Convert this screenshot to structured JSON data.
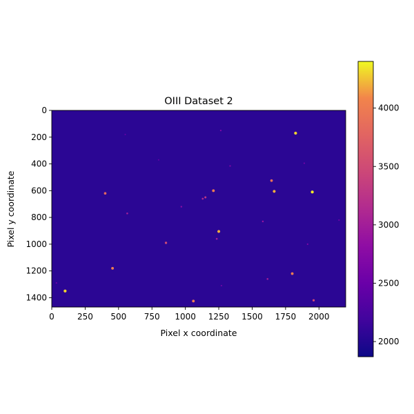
{
  "chart_data": {
    "type": "heatmap",
    "title": "OIII Dataset 2",
    "xlabel": "Pixel x coordinate",
    "ylabel": "Pixel y coordinate",
    "xlim": [
      0,
      2200
    ],
    "ylim": [
      1470,
      0
    ],
    "x_ticks": [
      0,
      250,
      500,
      750,
      1000,
      1250,
      1500,
      1750,
      2000
    ],
    "y_ticks": [
      0,
      200,
      400,
      600,
      800,
      1000,
      1200,
      1400
    ],
    "colormap": "plasma",
    "colorbar": {
      "min": 1870,
      "max": 4400,
      "ticks": [
        2000,
        2500,
        3000,
        3500,
        4000
      ]
    },
    "background_level": 2050,
    "sources": [
      {
        "x": 1825,
        "y": 170,
        "value": 4300
      },
      {
        "x": 1950,
        "y": 610,
        "value": 4350
      },
      {
        "x": 1665,
        "y": 605,
        "value": 4200
      },
      {
        "x": 1210,
        "y": 600,
        "value": 4000
      },
      {
        "x": 1645,
        "y": 525,
        "value": 3900
      },
      {
        "x": 400,
        "y": 620,
        "value": 3800
      },
      {
        "x": 1250,
        "y": 905,
        "value": 4200
      },
      {
        "x": 100,
        "y": 1350,
        "value": 4300
      },
      {
        "x": 455,
        "y": 1180,
        "value": 4000
      },
      {
        "x": 1800,
        "y": 1220,
        "value": 4000
      },
      {
        "x": 1060,
        "y": 1425,
        "value": 4000
      },
      {
        "x": 855,
        "y": 990,
        "value": 3500
      },
      {
        "x": 1960,
        "y": 1420,
        "value": 3500
      },
      {
        "x": 1150,
        "y": 650,
        "value": 3300
      },
      {
        "x": 1130,
        "y": 660,
        "value": 3100
      },
      {
        "x": 1615,
        "y": 1260,
        "value": 3000
      },
      {
        "x": 1235,
        "y": 960,
        "value": 3000
      },
      {
        "x": 565,
        "y": 770,
        "value": 3000
      },
      {
        "x": 1580,
        "y": 830,
        "value": 2900
      },
      {
        "x": 970,
        "y": 720,
        "value": 2800
      },
      {
        "x": 1335,
        "y": 415,
        "value": 2700
      },
      {
        "x": 1265,
        "y": 150,
        "value": 2700
      },
      {
        "x": 1270,
        "y": 1310,
        "value": 2600
      },
      {
        "x": 2150,
        "y": 820,
        "value": 2600
      },
      {
        "x": 1890,
        "y": 395,
        "value": 2600
      },
      {
        "x": 1915,
        "y": 1000,
        "value": 2700
      },
      {
        "x": 550,
        "y": 180,
        "value": 2500
      },
      {
        "x": 800,
        "y": 370,
        "value": 2500
      },
      {
        "x": 35,
        "y": 1290,
        "value": 2600
      }
    ]
  }
}
